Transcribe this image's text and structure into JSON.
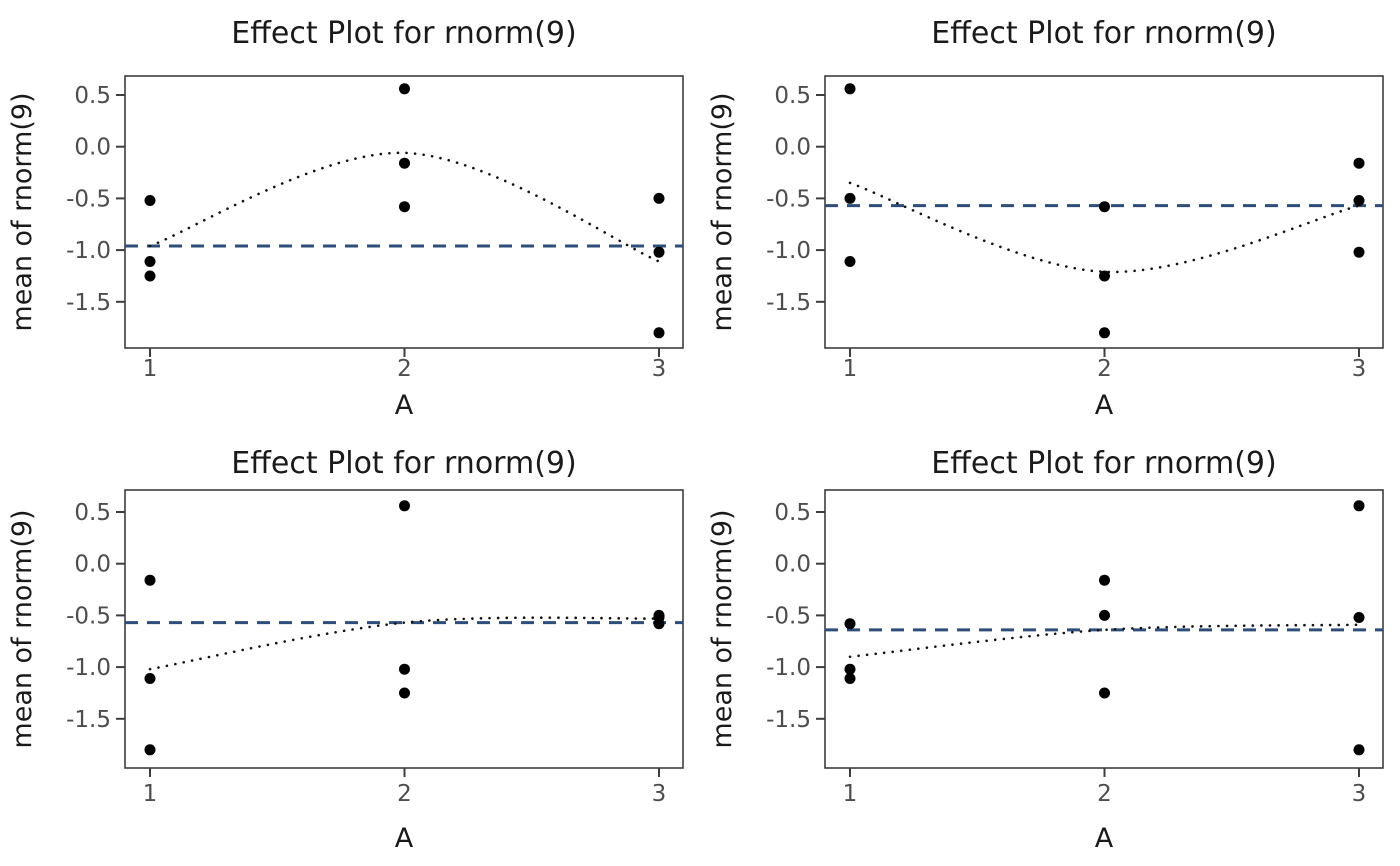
{
  "figure": {
    "layout": "2x2-grid",
    "background": "#ffffff"
  },
  "palette": {
    "point_color": "#000000",
    "mean_curve_color": "#111111",
    "grand_mean_color": "#2f4d79",
    "axis_color": "#3d3d3d",
    "tick_label_color": "#4d4d4d",
    "text_color": "#1a1a1a",
    "panel_background": "#ffffff"
  },
  "chart_data": [
    {
      "type": "scatter",
      "position": "top-left",
      "title": "Effect Plot for rnorm(9)",
      "xlabel": "A",
      "ylabel": "mean of rnorm(9)",
      "grid": false,
      "legend": "none",
      "xlim": [
        0.78,
        3.1
      ],
      "ylim": [
        -1.95,
        0.68
      ],
      "x_ticks": {
        "values": [
          1,
          2,
          3
        ],
        "labels": [
          "1",
          "2",
          "3"
        ]
      },
      "y_ticks": {
        "values": [
          0.5,
          0.0,
          -0.5,
          -1.0,
          -1.5
        ],
        "labels": [
          "0.5",
          "0.0",
          "-0.5",
          "-1.0",
          "-1.5"
        ]
      },
      "groups": [
        {
          "x": 1,
          "values": [
            -0.52,
            -1.11,
            -1.25
          ]
        },
        {
          "x": 2,
          "values": [
            0.56,
            -0.16,
            -0.58
          ]
        },
        {
          "x": 3,
          "values": [
            -0.5,
            -1.02,
            -1.8
          ]
        }
      ],
      "group_means": [
        -0.96,
        -0.06,
        -1.11
      ],
      "group_means_style": "dotted-spline",
      "grand_mean": -0.96,
      "grand_mean_style": "dashed-horizontal-line"
    },
    {
      "type": "scatter",
      "position": "top-right",
      "title": "Effect Plot for rnorm(9)",
      "xlabel": "A",
      "ylabel": "mean of rnorm(9)",
      "grid": false,
      "legend": "none",
      "xlim": [
        0.78,
        3.1
      ],
      "ylim": [
        -1.95,
        0.68
      ],
      "x_ticks": {
        "values": [
          1,
          2,
          3
        ],
        "labels": [
          "1",
          "2",
          "3"
        ]
      },
      "y_ticks": {
        "values": [
          0.5,
          0.0,
          -0.5,
          -1.0,
          -1.5
        ],
        "labels": [
          "0.5",
          "0.0",
          "-0.5",
          "-1.0",
          "-1.5"
        ]
      },
      "groups": [
        {
          "x": 1,
          "values": [
            0.56,
            -0.5,
            -1.11
          ]
        },
        {
          "x": 2,
          "values": [
            -0.58,
            -1.25,
            -1.8
          ]
        },
        {
          "x": 3,
          "values": [
            -0.16,
            -0.52,
            -1.02
          ]
        }
      ],
      "group_means": [
        -0.35,
        -1.21,
        -0.57
      ],
      "group_means_style": "dotted-spline",
      "grand_mean": -0.57,
      "grand_mean_style": "dashed-horizontal-line"
    },
    {
      "type": "scatter",
      "position": "bottom-left",
      "title": "Effect Plot for rnorm(9)",
      "xlabel": "A",
      "ylabel": "mean of rnorm(9)",
      "grid": false,
      "legend": "none",
      "xlim": [
        0.78,
        3.1
      ],
      "ylim": [
        -1.95,
        0.68
      ],
      "x_ticks": {
        "values": [
          1,
          2,
          3
        ],
        "labels": [
          "1",
          "2",
          "3"
        ]
      },
      "y_ticks": {
        "values": [
          0.5,
          0.0,
          -0.5,
          -1.0,
          -1.5
        ],
        "labels": [
          "0.5",
          "0.0",
          "-0.5",
          "-1.0",
          "-1.5"
        ]
      },
      "groups": [
        {
          "x": 1,
          "values": [
            -0.16,
            -1.11,
            -1.8
          ]
        },
        {
          "x": 2,
          "values": [
            0.56,
            -1.02,
            -1.25
          ]
        },
        {
          "x": 3,
          "values": [
            -0.5,
            -0.52,
            -0.58
          ]
        }
      ],
      "group_means": [
        -1.02,
        -0.57,
        -0.53
      ],
      "group_means_style": "dotted-spline",
      "grand_mean": -0.57,
      "grand_mean_style": "dashed-horizontal-line"
    },
    {
      "type": "scatter",
      "position": "bottom-right",
      "title": "Effect Plot for rnorm(9)",
      "xlabel": "A",
      "ylabel": "mean of rnorm(9)",
      "grid": false,
      "legend": "none",
      "xlim": [
        0.78,
        3.1
      ],
      "ylim": [
        -1.95,
        0.68
      ],
      "x_ticks": {
        "values": [
          1,
          2,
          3
        ],
        "labels": [
          "1",
          "2",
          "3"
        ]
      },
      "y_ticks": {
        "values": [
          0.5,
          0.0,
          -0.5,
          -1.0,
          -1.5
        ],
        "labels": [
          "0.5",
          "0.0",
          "-0.5",
          "-1.0",
          "-1.5"
        ]
      },
      "groups": [
        {
          "x": 1,
          "values": [
            -0.58,
            -1.02,
            -1.11
          ]
        },
        {
          "x": 2,
          "values": [
            -0.16,
            -0.5,
            -1.25
          ]
        },
        {
          "x": 3,
          "values": [
            0.56,
            -0.52,
            -1.8
          ]
        }
      ],
      "group_means": [
        -0.9,
        -0.64,
        -0.59
      ],
      "group_means_style": "dotted-spline",
      "grand_mean": -0.64,
      "grand_mean_style": "dashed-horizontal-line"
    }
  ]
}
